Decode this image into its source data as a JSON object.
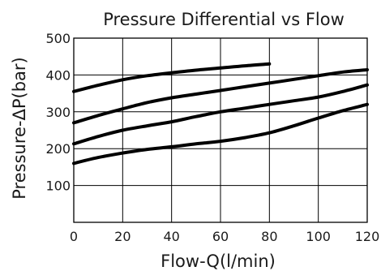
{
  "chart_data": {
    "type": "line",
    "title": "Pressure Differential vs Flow",
    "xlabel": "Flow-Q(l/min)",
    "ylabel": "Pressure-ΔP(bar)",
    "xlim": [
      0,
      120
    ],
    "ylim": [
      0,
      500
    ],
    "x_ticks": [
      0,
      20,
      40,
      60,
      80,
      100,
      120
    ],
    "y_ticks": [
      100,
      200,
      300,
      400,
      500
    ],
    "grid": true,
    "legend": "none",
    "series": [
      {
        "x": [
          0,
          10,
          20,
          30,
          40,
          50,
          60,
          70,
          80
        ],
        "values": [
          355,
          372,
          387,
          398,
          406,
          413,
          419,
          425,
          430
        ]
      },
      {
        "x": [
          0,
          10,
          20,
          30,
          40,
          50,
          60,
          70,
          80,
          90,
          100,
          110,
          120
        ],
        "values": [
          270,
          290,
          308,
          325,
          338,
          348,
          358,
          368,
          378,
          388,
          398,
          408,
          414
        ]
      },
      {
        "x": [
          0,
          10,
          20,
          30,
          40,
          50,
          60,
          70,
          80,
          90,
          100,
          110,
          120
        ],
        "values": [
          213,
          233,
          250,
          262,
          273,
          287,
          300,
          310,
          320,
          330,
          340,
          355,
          373
        ]
      },
      {
        "x": [
          0,
          10,
          20,
          30,
          40,
          50,
          60,
          70,
          80,
          90,
          100,
          110,
          120
        ],
        "values": [
          160,
          176,
          188,
          198,
          205,
          213,
          220,
          230,
          243,
          262,
          283,
          303,
          320
        ]
      }
    ]
  }
}
